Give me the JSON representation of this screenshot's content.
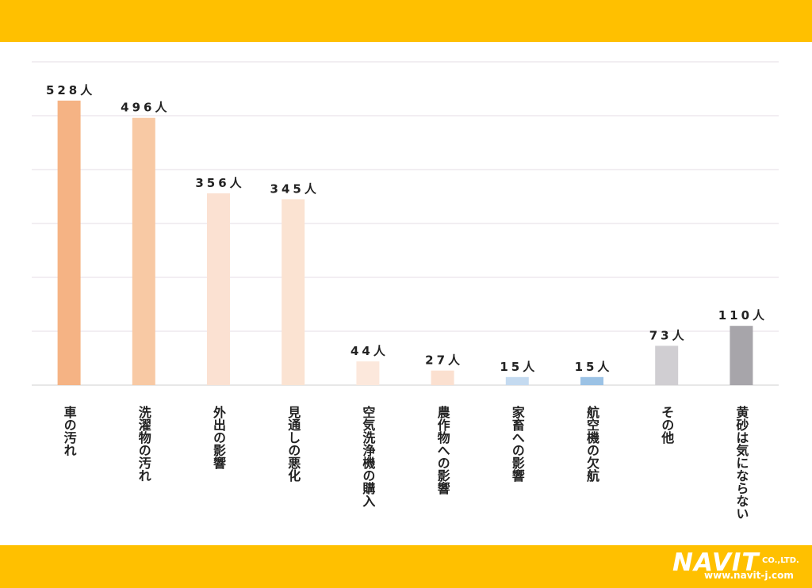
{
  "colors": {
    "band": "#FFC000",
    "gridline": "#E6DDE6",
    "baseline": "#CFCFCF"
  },
  "brand": {
    "name": "NAVIT",
    "suffix": "CO.,LTD.",
    "url": "www.navit-j.com"
  },
  "chart_data": {
    "type": "bar",
    "title": "",
    "xlabel": "",
    "ylabel": "",
    "ylim": [
      0,
      600
    ],
    "grid": true,
    "legend": "none",
    "categories": [
      "車の汚れ",
      "洗濯物の汚れ",
      "外出の影響",
      "見通しの悪化",
      "空気洗浄機の購入",
      "農作物への影響",
      "家畜への影響",
      "航空機の欠航",
      "その他",
      "黄砂は気にならない"
    ],
    "values": [
      528,
      496,
      356,
      345,
      44,
      27,
      15,
      15,
      73,
      110
    ],
    "value_labels": [
      "528人",
      "496人",
      "356人",
      "345人",
      "44人",
      "27人",
      "15人",
      "15人",
      "73人",
      "110人"
    ],
    "bar_colors": [
      "#F5B384",
      "#F8C9A4",
      "#FBE1D2",
      "#FBE3D2",
      "#FCE8DC",
      "#FBE0D0",
      "#C4DAF0",
      "#9BC2E5",
      "#D0CED2",
      "#A7A5AA"
    ]
  }
}
